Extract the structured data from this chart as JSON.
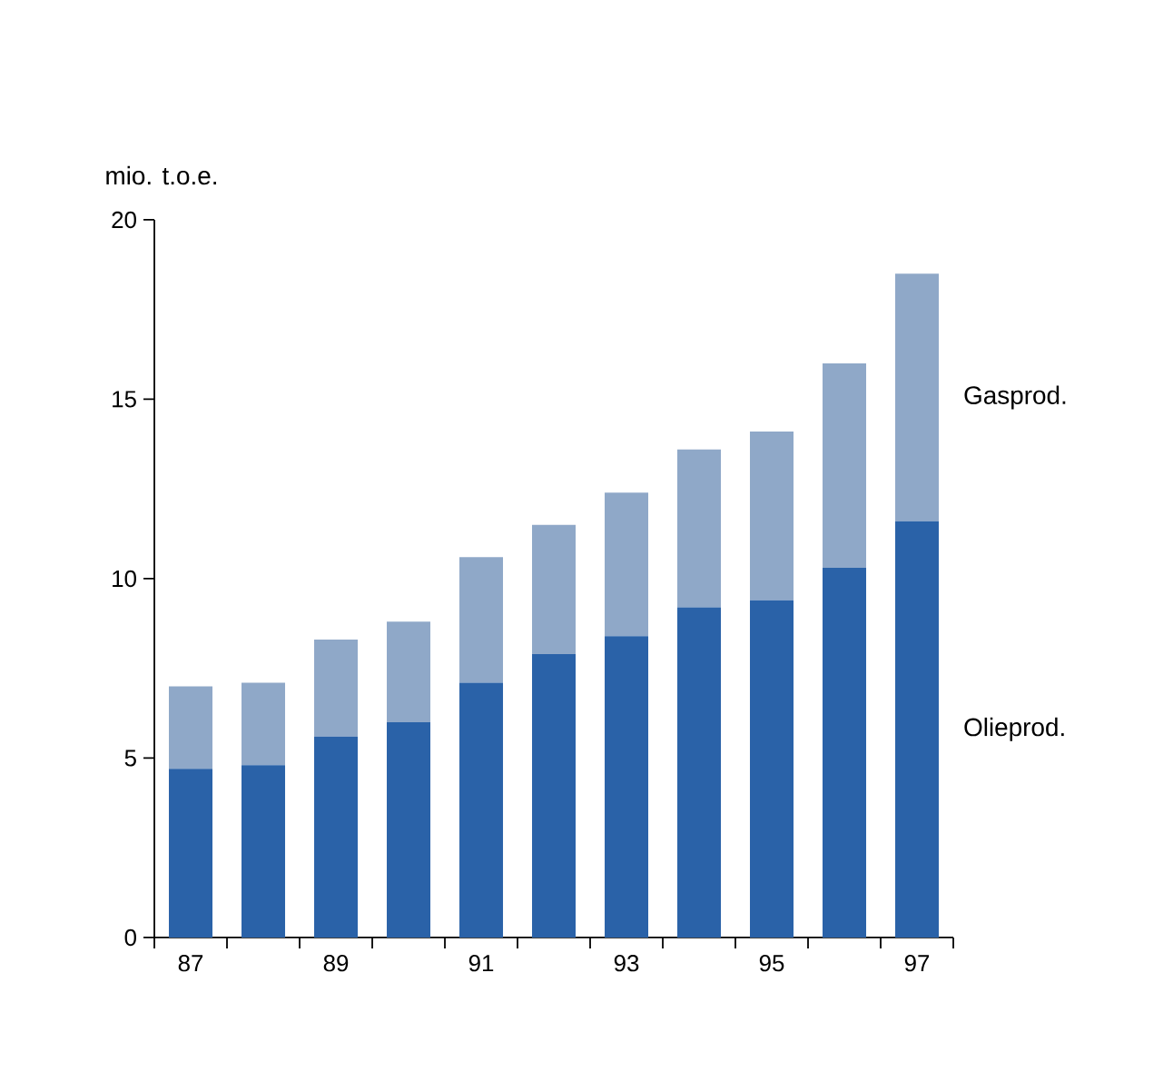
{
  "chart_data": {
    "type": "bar",
    "stacked": true,
    "ylabel": "mio. t.o.e.",
    "categories": [
      "87",
      null,
      "89",
      null,
      "91",
      null,
      "93",
      null,
      "95",
      null,
      "97"
    ],
    "series": [
      {
        "name": "Olieprod.",
        "color": "#2a62a8",
        "values": [
          4.7,
          4.8,
          5.6,
          6.0,
          7.1,
          7.9,
          8.4,
          9.2,
          9.4,
          10.3,
          11.6
        ]
      },
      {
        "name": "Gasprod.",
        "color": "#8fa8c8",
        "values": [
          2.3,
          2.3,
          2.7,
          2.8,
          3.5,
          3.6,
          4.0,
          4.4,
          4.7,
          5.7,
          6.9
        ]
      }
    ],
    "ylim": [
      0,
      20
    ],
    "yticks": [
      0,
      5,
      10,
      15,
      20
    ]
  }
}
